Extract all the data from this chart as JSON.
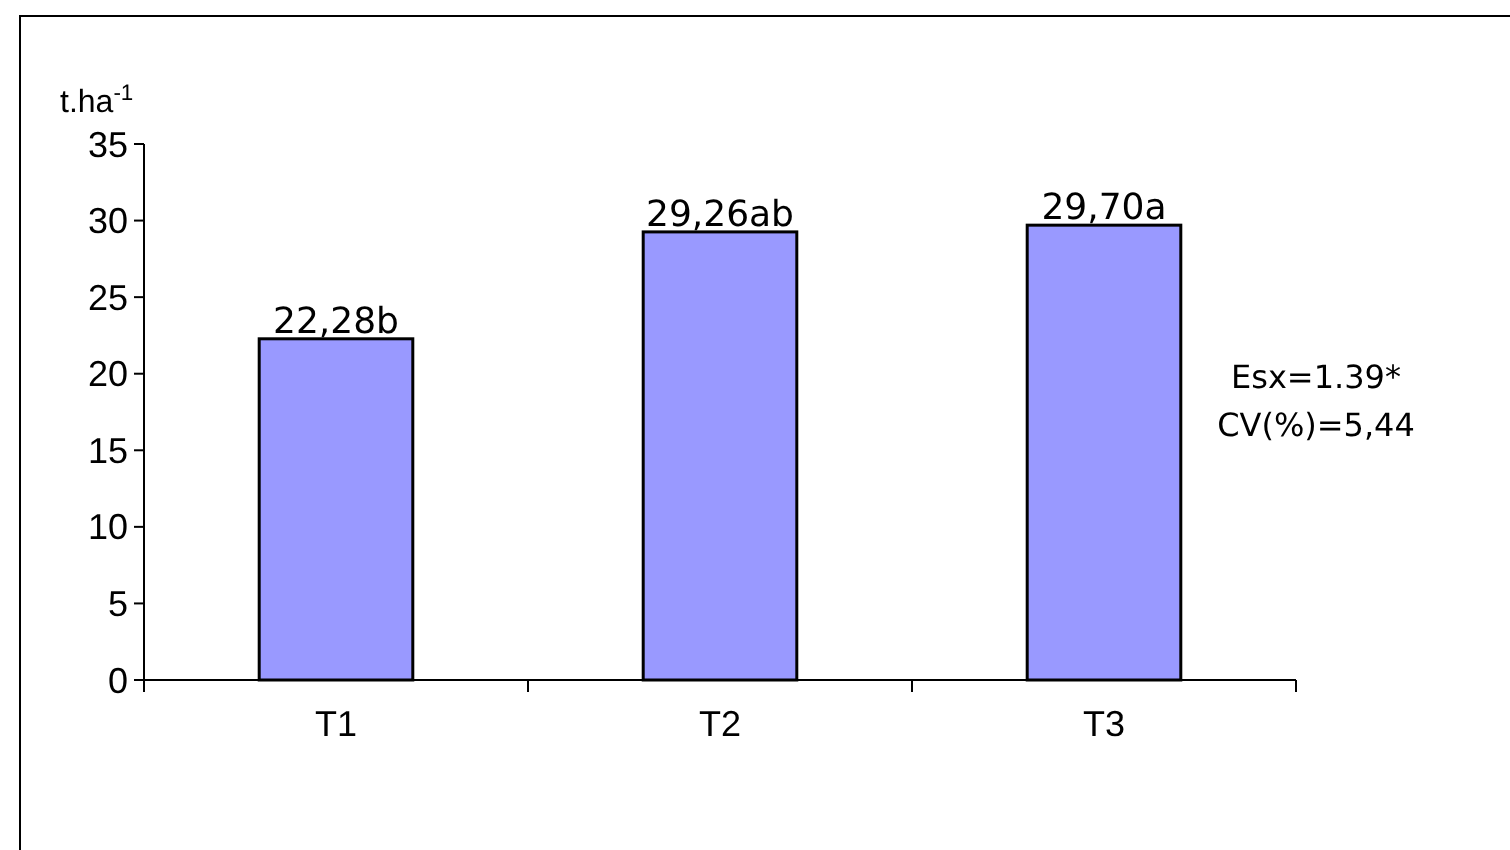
{
  "chart_data": {
    "type": "bar",
    "ylabel": "t.ha$^{-1}$",
    "categories": [
      "T1",
      "T2",
      "T3"
    ],
    "values": [
      22.28,
      29.26,
      29.7
    ],
    "color": "#9999ff",
    "value_labels": [
      "22,28b",
      "29,26ab",
      "29,70a"
    ],
    "ylim": [
      0,
      35
    ],
    "yticks": [
      0,
      5,
      10,
      15,
      20,
      25,
      30,
      35
    ],
    "annotations": [
      "Esx=1.39*",
      "CV(%)=5,44"
    ]
  }
}
